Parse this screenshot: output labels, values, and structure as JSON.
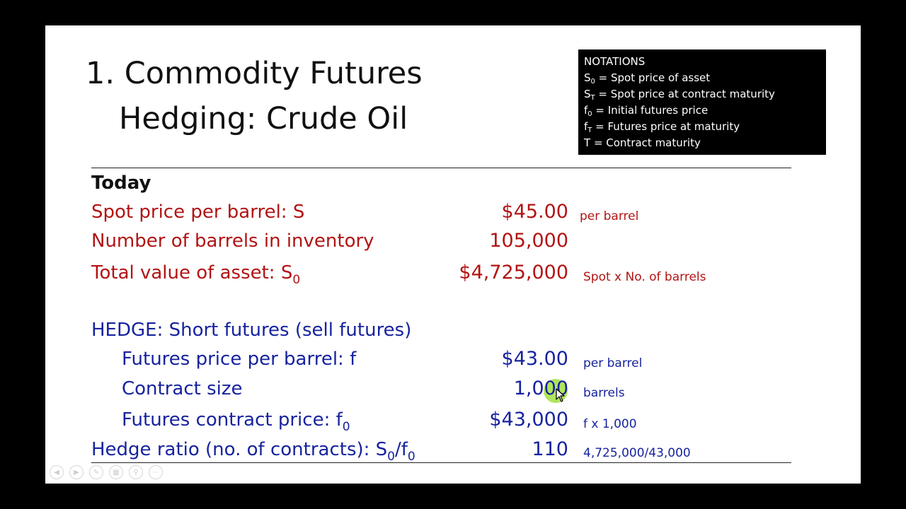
{
  "slide": {
    "title_line1": "1. Commodity Futures",
    "title_line2": "Hedging: Crude Oil"
  },
  "notations": {
    "heading": "NOTATIONS",
    "items": [
      {
        "sym": "S",
        "sub": "0",
        "text": " = Spot price of asset"
      },
      {
        "sym": "S",
        "sub": "T",
        "text": " = Spot price at contract maturity"
      },
      {
        "sym": "f",
        "sub": "0",
        "text": " = Initial futures price"
      },
      {
        "sym": "f",
        "sub": "T",
        "text": " = Futures price at maturity"
      },
      {
        "sym": "T",
        "sub": "",
        "text": " = Contract maturity"
      }
    ]
  },
  "today": {
    "heading": "Today",
    "spot_label": "Spot price per barrel: S",
    "spot_value": "$45.00",
    "spot_note": "per barrel",
    "barrels_label": "Number of barrels in inventory",
    "barrels_value": "105,000",
    "total_label_main": "Total value of asset: S",
    "total_label_sub": "0",
    "total_value": "$4,725,000",
    "total_note": "Spot x No. of barrels"
  },
  "hedge": {
    "heading": "HEDGE: Short futures (sell futures)",
    "futures_price_label": "Futures price per barrel: f",
    "futures_price_value": "$43.00",
    "futures_price_note": "per barrel",
    "contract_size_label": "Contract size",
    "contract_size_value": "1,000",
    "contract_size_note": "barrels",
    "contract_price_label_main": "Futures contract price: f",
    "contract_price_label_sub": "0",
    "contract_price_value": "$43,000",
    "contract_price_note": "f x 1,000",
    "ratio_label_main": "Hedge ratio (no. of contracts): S",
    "ratio_label_sub1": "0",
    "ratio_label_mid": "/f",
    "ratio_label_sub2": "0",
    "ratio_value": "110",
    "ratio_note": "4,725,000/43,000"
  },
  "controls": [
    {
      "name": "previous-slide-icon",
      "glyph": "◀"
    },
    {
      "name": "next-slide-icon",
      "glyph": "▶"
    },
    {
      "name": "pen-icon",
      "glyph": "✎"
    },
    {
      "name": "slides-grid-icon",
      "glyph": "▦"
    },
    {
      "name": "zoom-icon",
      "glyph": "⚲"
    },
    {
      "name": "more-options-icon",
      "glyph": "⋯"
    }
  ]
}
